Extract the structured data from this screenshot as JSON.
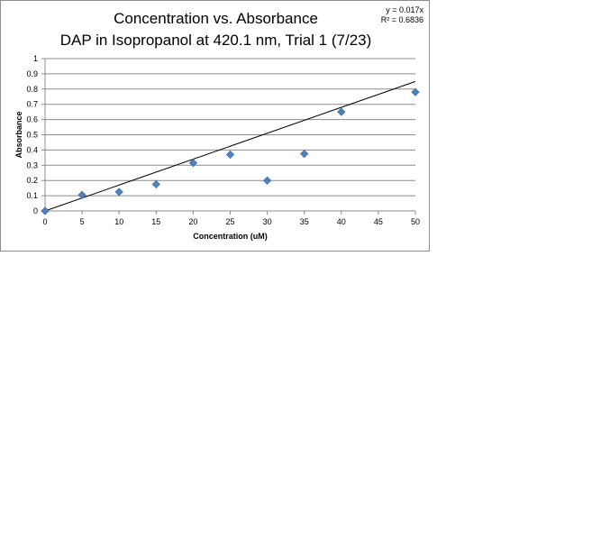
{
  "chart_data": {
    "type": "scatter",
    "title": "Concentration vs. Absorbance",
    "subtitle": "DAP in Isopropanol at 420.1 nm, Trial 1 (7/23)",
    "xlabel": "Concentration (uM)",
    "ylabel": "Absorbance",
    "xlim": [
      0,
      50
    ],
    "ylim": [
      0,
      1
    ],
    "x_ticks": [
      "0",
      "5",
      "10",
      "15",
      "20",
      "25",
      "30",
      "35",
      "40",
      "45",
      "50"
    ],
    "y_ticks": [
      "0",
      "0.1",
      "0.2",
      "0.3",
      "0.4",
      "0.5",
      "0.6",
      "0.7",
      "0.8",
      "0.9",
      "1"
    ],
    "grid": "horizontal",
    "legend": "none",
    "series": [
      {
        "points": [
          {
            "x": 0,
            "y": 0.0
          },
          {
            "x": 5,
            "y": 0.105
          },
          {
            "x": 10,
            "y": 0.125
          },
          {
            "x": 15,
            "y": 0.175
          },
          {
            "x": 20,
            "y": 0.315
          },
          {
            "x": 25,
            "y": 0.37
          },
          {
            "x": 30,
            "y": 0.2
          },
          {
            "x": 35,
            "y": 0.375
          },
          {
            "x": 40,
            "y": 0.65
          },
          {
            "x": 50,
            "y": 0.78
          }
        ],
        "color": "#4f81bd",
        "marker": "diamond"
      }
    ],
    "trendline": {
      "slope": 0.017,
      "intercept": 0,
      "color": "#000000",
      "equation": "y = 0.017x",
      "r_squared": "R² = 0.6836"
    }
  }
}
